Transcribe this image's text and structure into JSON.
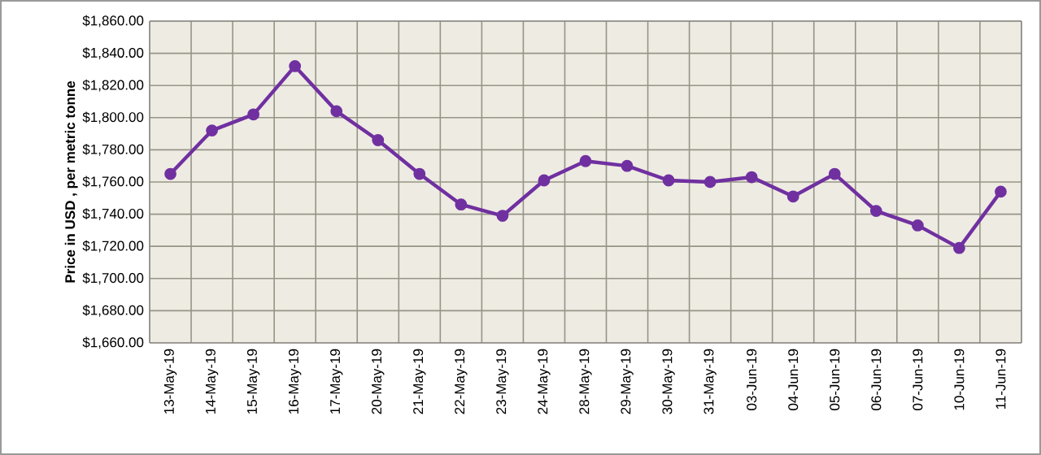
{
  "chart_data": {
    "type": "line",
    "ylabel": "Price in USD , per metric tonne",
    "categories": [
      "13-May-19",
      "14-May-19",
      "15-May-19",
      "16-May-19",
      "17-May-19",
      "20-May-19",
      "21-May-19",
      "22-May-19",
      "23-May-19",
      "24-May-19",
      "28-May-19",
      "29-May-19",
      "30-May-19",
      "31-May-19",
      "03-Jun-19",
      "04-Jun-19",
      "05-Jun-19",
      "06-Jun-19",
      "07-Jun-19",
      "10-Jun-19",
      "11-Jun-19"
    ],
    "series": [
      {
        "color": "#7030a0",
        "values": [
          1765,
          1792,
          1802,
          1832,
          1804,
          1786,
          1765,
          1746,
          1739,
          1761,
          1773,
          1770,
          1761,
          1760,
          1763,
          1751,
          1765,
          1742,
          1733,
          1719,
          1754
        ]
      }
    ],
    "ylim": [
      1660,
      1860
    ],
    "yticks": [
      {
        "value": 1660,
        "label": "$1,660.00"
      },
      {
        "value": 1680,
        "label": "$1,680.00"
      },
      {
        "value": 1700,
        "label": "$1,700.00"
      },
      {
        "value": 1720,
        "label": "$1,720.00"
      },
      {
        "value": 1740,
        "label": "$1,740.00"
      },
      {
        "value": 1760,
        "label": "$1,760.00"
      },
      {
        "value": 1780,
        "label": "$1,780.00"
      },
      {
        "value": 1800,
        "label": "$1,800.00"
      },
      {
        "value": 1820,
        "label": "$1,820.00"
      },
      {
        "value": 1840,
        "label": "$1,840.00"
      },
      {
        "value": 1860,
        "label": "$1,860.00"
      }
    ],
    "grid": true,
    "marker": "circle",
    "line_style": "solid"
  }
}
